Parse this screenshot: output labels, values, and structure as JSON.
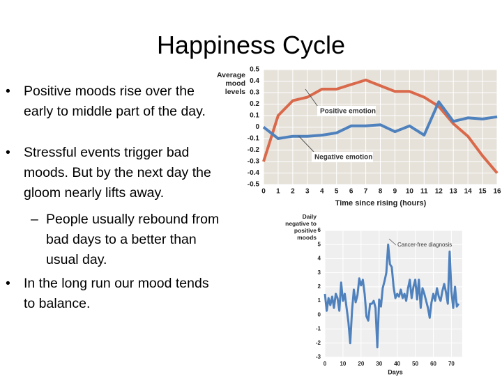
{
  "slide": {
    "title": "Happiness Cycle",
    "bullets": [
      "Positive moods rise over the early to middle part of the day.",
      "Stressful events trigger bad moods. But by the next day the gloom nearly lifts away.",
      "People usually rebound from bad days to a better than usual day.",
      "In the long run our mood tends to balance."
    ]
  },
  "chart_data": [
    {
      "type": "line",
      "y_label": "Average mood levels",
      "x_label": "Time since rising (hours)",
      "x": [
        0,
        1,
        2,
        3,
        4,
        5,
        6,
        7,
        8,
        9,
        10,
        11,
        12,
        13,
        14,
        15,
        16
      ],
      "series": [
        {
          "name": "Positive emotion",
          "color": "#d9694a",
          "values": [
            -0.3,
            0.1,
            0.23,
            0.26,
            0.33,
            0.33,
            0.37,
            0.41,
            0.36,
            0.31,
            0.31,
            0.26,
            0.18,
            0.03,
            -0.08,
            -0.25,
            -0.4
          ]
        },
        {
          "name": "Negative emotion",
          "color": "#4f81bd",
          "values": [
            0,
            -0.1,
            -0.08,
            -0.08,
            -0.07,
            -0.05,
            0.01,
            0.01,
            0.02,
            -0.04,
            0.01,
            -0.07,
            0.22,
            0.05,
            0.08,
            0.07,
            0.09
          ]
        }
      ],
      "xlim": [
        0,
        16
      ],
      "xticks": [
        0,
        1,
        2,
        3,
        4,
        5,
        6,
        7,
        8,
        9,
        10,
        11,
        12,
        13,
        14,
        15,
        16
      ],
      "ylim": [
        -0.5,
        0.5
      ],
      "yticks": [
        0.5,
        0.4,
        0.3,
        0.2,
        0.1,
        0,
        -0.1,
        -0.2,
        -0.3,
        -0.4,
        -0.5
      ],
      "grid": true
    },
    {
      "type": "line",
      "y_label": "Daily negative to positive moods",
      "x_label": "Days",
      "annotation": "Cancer-free diagnosis",
      "x": [
        0,
        1,
        2,
        3,
        4,
        5,
        6,
        7,
        8,
        9,
        10,
        11,
        12,
        13,
        14,
        15,
        16,
        17,
        18,
        19,
        20,
        21,
        22,
        23,
        24,
        25,
        26,
        27,
        28,
        29,
        30,
        31,
        32,
        33,
        34,
        35,
        36,
        37,
        38,
        39,
        40,
        41,
        42,
        43,
        44,
        45,
        46,
        47,
        48,
        49,
        50,
        51,
        52,
        53,
        54,
        55,
        56,
        57,
        58,
        59,
        60,
        61,
        62,
        63,
        64,
        65,
        66,
        67,
        68,
        69,
        70,
        71,
        72,
        73,
        74
      ],
      "series": [
        {
          "color": "#4f81bd",
          "values": [
            1.5,
            0.3,
            1.2,
            0.7,
            1.3,
            0.5,
            1.5,
            1.2,
            0.3,
            2.3,
            1.0,
            1.5,
            0.5,
            -0.5,
            -2,
            0.3,
            1.8,
            0.9,
            1.4,
            2.6,
            2.1,
            2.5,
            1.5,
            -0.1,
            -0.4,
            0.8,
            0.8,
            1.0,
            0.5,
            -2.3,
            1.1,
            0.6,
            1.9,
            2.4,
            3.0,
            5.0,
            3.6,
            3.4,
            2.0,
            1.2,
            1.5,
            1.3,
            1.8,
            1.2,
            1.5,
            1.0,
            1.9,
            2.5,
            1.2,
            2.0,
            2.5,
            1.1,
            2.5,
            0.5,
            1.9,
            1.5,
            1.0,
            0.5,
            -0.2,
            0.9,
            1.5,
            1.0,
            1.9,
            1.3,
            1.0,
            1.7,
            2.2,
            1.6,
            0.8,
            4.5,
            1.7,
            0.5,
            2.0,
            0.6,
            0.8
          ]
        }
      ],
      "xlim": [
        0,
        76
      ],
      "xticks": [
        0,
        10,
        20,
        30,
        40,
        50,
        60,
        70
      ],
      "ylim": [
        -3,
        6
      ],
      "yticks": [
        6,
        5,
        4,
        3,
        2,
        1,
        0,
        -1,
        -2,
        -3
      ],
      "grid": true
    }
  ]
}
